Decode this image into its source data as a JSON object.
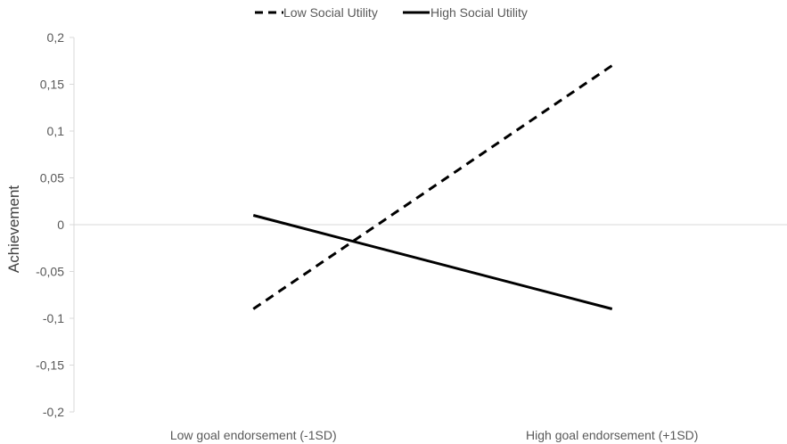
{
  "chart_data": {
    "type": "line",
    "categories": [
      "Low goal endorsement (-1SD)",
      "High goal endorsement (+1SD)"
    ],
    "series": [
      {
        "name": "Low Social Utility",
        "values": [
          -0.09,
          0.17
        ],
        "style": "dashed",
        "color": "#000000"
      },
      {
        "name": "High Social Utility",
        "values": [
          0.01,
          -0.09
        ],
        "style": "solid",
        "color": "#000000"
      }
    ],
    "title": "",
    "xlabel": "",
    "ylabel": "Achievement",
    "ylim": [
      -0.2,
      0.2
    ],
    "yticks": [
      0.2,
      0.15,
      0.1,
      0.05,
      0,
      -0.05,
      -0.1,
      -0.15,
      -0.2
    ],
    "ytick_labels": [
      "0,2",
      "0,15",
      "0,1",
      "0,05",
      "0",
      "-0,05",
      "-0,1",
      "-0,15",
      "-0,2"
    ],
    "grid": false,
    "legend_position": "top"
  }
}
